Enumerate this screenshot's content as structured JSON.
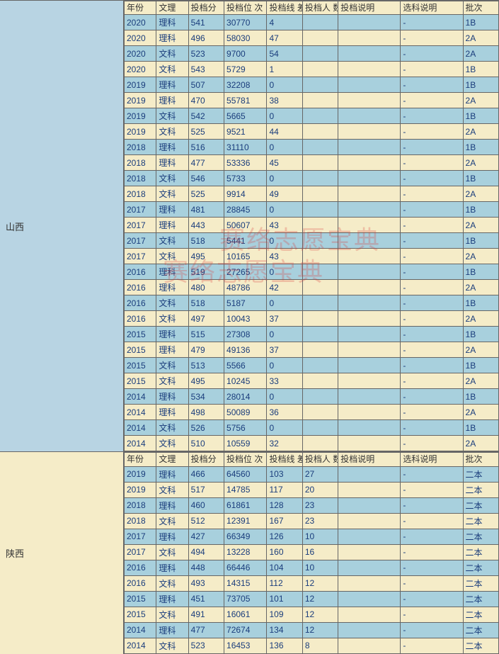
{
  "watermarks": [
    "赛络志愿宝典",
    "赛络志愿宝典"
  ],
  "columns": [
    {
      "key": "year",
      "label": "年份",
      "cls": "col-year"
    },
    {
      "key": "type",
      "label": "文理",
      "cls": "col-type"
    },
    {
      "key": "score",
      "label": "投档分",
      "cls": "col-score"
    },
    {
      "key": "rank",
      "label": "投档位\n次",
      "cls": "col-rank"
    },
    {
      "key": "diff",
      "label": "投档线\n差",
      "cls": "col-diff"
    },
    {
      "key": "count",
      "label": "投档人\n数",
      "cls": "col-count"
    },
    {
      "key": "note1",
      "label": "投档说明",
      "cls": "col-note1"
    },
    {
      "key": "note2",
      "label": "选科说明",
      "cls": "col-note2"
    },
    {
      "key": "batch",
      "label": "批次",
      "cls": "col-batch"
    }
  ],
  "provinces": [
    {
      "name": "山西",
      "bgClass": "province-shanxi",
      "rows": [
        {
          "year": "2020",
          "type": "理科",
          "score": "541",
          "rank": "30770",
          "diff": "4",
          "count": "",
          "note1": "",
          "note2": "-",
          "batch": "1B",
          "cls": "row-blue"
        },
        {
          "year": "2020",
          "type": "理科",
          "score": "496",
          "rank": "58030",
          "diff": "47",
          "count": "",
          "note1": "",
          "note2": "-",
          "batch": "2A",
          "cls": "row-cream"
        },
        {
          "year": "2020",
          "type": "文科",
          "score": "523",
          "rank": "9700",
          "diff": "54",
          "count": "",
          "note1": "",
          "note2": "-",
          "batch": "2A",
          "cls": "row-blue"
        },
        {
          "year": "2020",
          "type": "文科",
          "score": "543",
          "rank": "5729",
          "diff": "1",
          "count": "",
          "note1": "",
          "note2": "-",
          "batch": "1B",
          "cls": "row-cream"
        },
        {
          "year": "2019",
          "type": "理科",
          "score": "507",
          "rank": "32208",
          "diff": "0",
          "count": "",
          "note1": "",
          "note2": "-",
          "batch": "1B",
          "cls": "row-blue"
        },
        {
          "year": "2019",
          "type": "理科",
          "score": "470",
          "rank": "55781",
          "diff": "38",
          "count": "",
          "note1": "",
          "note2": "-",
          "batch": "2A",
          "cls": "row-cream"
        },
        {
          "year": "2019",
          "type": "文科",
          "score": "542",
          "rank": "5665",
          "diff": "0",
          "count": "",
          "note1": "",
          "note2": "-",
          "batch": "1B",
          "cls": "row-blue"
        },
        {
          "year": "2019",
          "type": "文科",
          "score": "525",
          "rank": "9521",
          "diff": "44",
          "count": "",
          "note1": "",
          "note2": "-",
          "batch": "2A",
          "cls": "row-cream"
        },
        {
          "year": "2018",
          "type": "理科",
          "score": "516",
          "rank": "31110",
          "diff": "0",
          "count": "",
          "note1": "",
          "note2": "-",
          "batch": "1B",
          "cls": "row-blue"
        },
        {
          "year": "2018",
          "type": "理科",
          "score": "477",
          "rank": "53336",
          "diff": "45",
          "count": "",
          "note1": "",
          "note2": "-",
          "batch": "2A",
          "cls": "row-cream"
        },
        {
          "year": "2018",
          "type": "文科",
          "score": "546",
          "rank": "5733",
          "diff": "0",
          "count": "",
          "note1": "",
          "note2": "-",
          "batch": "1B",
          "cls": "row-blue"
        },
        {
          "year": "2018",
          "type": "文科",
          "score": "525",
          "rank": "9914",
          "diff": "49",
          "count": "",
          "note1": "",
          "note2": "-",
          "batch": "2A",
          "cls": "row-cream"
        },
        {
          "year": "2017",
          "type": "理科",
          "score": "481",
          "rank": "28845",
          "diff": "0",
          "count": "",
          "note1": "",
          "note2": "-",
          "batch": "1B",
          "cls": "row-blue"
        },
        {
          "year": "2017",
          "type": "理科",
          "score": "443",
          "rank": "50607",
          "diff": "43",
          "count": "",
          "note1": "",
          "note2": "-",
          "batch": "2A",
          "cls": "row-cream"
        },
        {
          "year": "2017",
          "type": "文科",
          "score": "518",
          "rank": "5441",
          "diff": "0",
          "count": "",
          "note1": "",
          "note2": "-",
          "batch": "1B",
          "cls": "row-blue"
        },
        {
          "year": "2017",
          "type": "文科",
          "score": "495",
          "rank": "10165",
          "diff": "43",
          "count": "",
          "note1": "",
          "note2": "-",
          "batch": "2A",
          "cls": "row-cream"
        },
        {
          "year": "2016",
          "type": "理科",
          "score": "519",
          "rank": "27265",
          "diff": "0",
          "count": "",
          "note1": "",
          "note2": "-",
          "batch": "1B",
          "cls": "row-blue"
        },
        {
          "year": "2016",
          "type": "理科",
          "score": "480",
          "rank": "48786",
          "diff": "42",
          "count": "",
          "note1": "",
          "note2": "-",
          "batch": "2A",
          "cls": "row-cream"
        },
        {
          "year": "2016",
          "type": "文科",
          "score": "518",
          "rank": "5187",
          "diff": "0",
          "count": "",
          "note1": "",
          "note2": "-",
          "batch": "1B",
          "cls": "row-blue"
        },
        {
          "year": "2016",
          "type": "文科",
          "score": "497",
          "rank": "10043",
          "diff": "37",
          "count": "",
          "note1": "",
          "note2": "-",
          "batch": "2A",
          "cls": "row-cream"
        },
        {
          "year": "2015",
          "type": "理科",
          "score": "515",
          "rank": "27308",
          "diff": "0",
          "count": "",
          "note1": "",
          "note2": "-",
          "batch": "1B",
          "cls": "row-blue"
        },
        {
          "year": "2015",
          "type": "理科",
          "score": "479",
          "rank": "49136",
          "diff": "37",
          "count": "",
          "note1": "",
          "note2": "-",
          "batch": "2A",
          "cls": "row-cream"
        },
        {
          "year": "2015",
          "type": "文科",
          "score": "513",
          "rank": "5566",
          "diff": "0",
          "count": "",
          "note1": "",
          "note2": "-",
          "batch": "1B",
          "cls": "row-blue"
        },
        {
          "year": "2015",
          "type": "文科",
          "score": "495",
          "rank": "10245",
          "diff": "33",
          "count": "",
          "note1": "",
          "note2": "-",
          "batch": "2A",
          "cls": "row-cream"
        },
        {
          "year": "2014",
          "type": "理科",
          "score": "534",
          "rank": "28014",
          "diff": "0",
          "count": "",
          "note1": "",
          "note2": "-",
          "batch": "1B",
          "cls": "row-blue"
        },
        {
          "year": "2014",
          "type": "理科",
          "score": "498",
          "rank": "50089",
          "diff": "36",
          "count": "",
          "note1": "",
          "note2": "-",
          "batch": "2A",
          "cls": "row-cream"
        },
        {
          "year": "2014",
          "type": "文科",
          "score": "526",
          "rank": "5756",
          "diff": "0",
          "count": "",
          "note1": "",
          "note2": "-",
          "batch": "1B",
          "cls": "row-blue"
        },
        {
          "year": "2014",
          "type": "文科",
          "score": "510",
          "rank": "10559",
          "diff": "32",
          "count": "",
          "note1": "",
          "note2": "-",
          "batch": "2A",
          "cls": "row-cream"
        }
      ]
    },
    {
      "name": "陕西",
      "bgClass": "province-shaanxi",
      "rows": [
        {
          "year": "2019",
          "type": "理科",
          "score": "466",
          "rank": "64560",
          "diff": "103",
          "count": "27",
          "note1": "",
          "note2": "-",
          "batch": "二本",
          "cls": "row-blue"
        },
        {
          "year": "2019",
          "type": "文科",
          "score": "517",
          "rank": "14785",
          "diff": "117",
          "count": "20",
          "note1": "",
          "note2": "-",
          "batch": "二本",
          "cls": "row-cream"
        },
        {
          "year": "2018",
          "type": "理科",
          "score": "460",
          "rank": "61861",
          "diff": "128",
          "count": "23",
          "note1": "",
          "note2": "-",
          "batch": "二本",
          "cls": "row-blue"
        },
        {
          "year": "2018",
          "type": "文科",
          "score": "512",
          "rank": "12391",
          "diff": "167",
          "count": "23",
          "note1": "",
          "note2": "-",
          "batch": "二本",
          "cls": "row-cream"
        },
        {
          "year": "2017",
          "type": "理科",
          "score": "427",
          "rank": "66349",
          "diff": "126",
          "count": "10",
          "note1": "",
          "note2": "-",
          "batch": "二本",
          "cls": "row-blue"
        },
        {
          "year": "2017",
          "type": "文科",
          "score": "494",
          "rank": "13228",
          "diff": "160",
          "count": "16",
          "note1": "",
          "note2": "-",
          "batch": "二本",
          "cls": "row-cream"
        },
        {
          "year": "2016",
          "type": "理科",
          "score": "448",
          "rank": "66446",
          "diff": "104",
          "count": "10",
          "note1": "",
          "note2": "-",
          "batch": "二本",
          "cls": "row-blue"
        },
        {
          "year": "2016",
          "type": "文科",
          "score": "493",
          "rank": "14315",
          "diff": "112",
          "count": "12",
          "note1": "",
          "note2": "-",
          "batch": "二本",
          "cls": "row-cream"
        },
        {
          "year": "2015",
          "type": "理科",
          "score": "451",
          "rank": "73705",
          "diff": "101",
          "count": "12",
          "note1": "",
          "note2": "-",
          "batch": "二本",
          "cls": "row-blue"
        },
        {
          "year": "2015",
          "type": "文科",
          "score": "491",
          "rank": "16061",
          "diff": "109",
          "count": "12",
          "note1": "",
          "note2": "-",
          "batch": "二本",
          "cls": "row-cream"
        },
        {
          "year": "2014",
          "type": "理科",
          "score": "477",
          "rank": "72674",
          "diff": "134",
          "count": "12",
          "note1": "",
          "note2": "-",
          "batch": "二本",
          "cls": "row-blue"
        },
        {
          "year": "2014",
          "type": "文科",
          "score": "523",
          "rank": "16453",
          "diff": "136",
          "count": "8",
          "note1": "",
          "note2": "-",
          "batch": "二本",
          "cls": "row-cream"
        }
      ]
    }
  ]
}
